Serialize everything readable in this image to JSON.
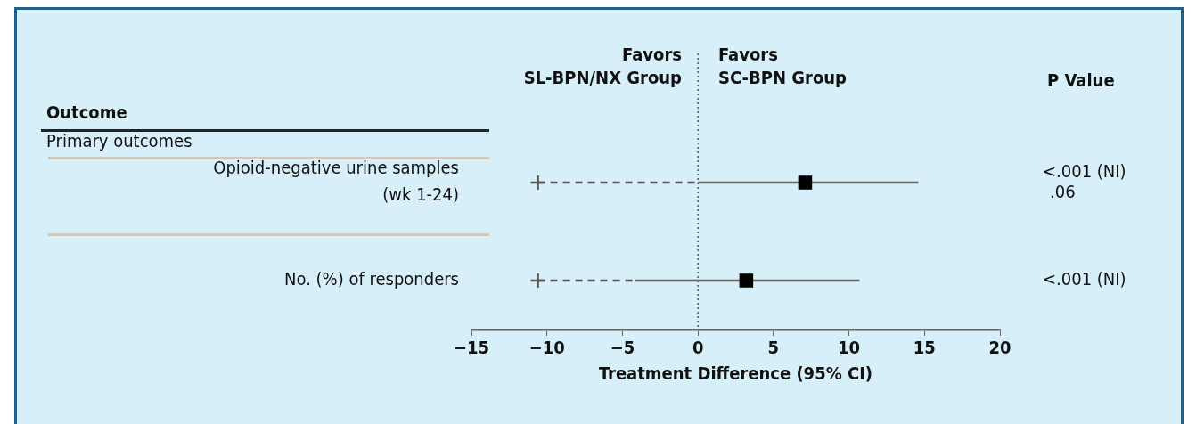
{
  "chart_data": {
    "type": "scatter",
    "orientation": "horizontal",
    "xlabel": "Treatment Difference (95% CI)",
    "categories": [
      "Opioid-negative urine samples (wk 1-24)",
      "No. (%) of responders"
    ],
    "series": [
      {
        "color": "#000000",
        "marker": "square",
        "values": [
          7.1,
          3.2
        ],
        "errors": [
          [
            0.0,
            14.6
          ],
          [
            -4.2,
            10.7
          ]
        ]
      },
      {
        "color": "#555555",
        "marker": "cross",
        "line_style": "dashed",
        "values": [
          -10.6,
          -10.6
        ],
        "errors": [
          [
            -10.6,
            0.0
          ],
          [
            -10.6,
            -4.2
          ]
        ]
      }
    ],
    "xlim": [
      -15,
      20
    ],
    "xticks": [
      -15,
      -10,
      -5,
      0,
      5,
      10,
      15,
      20
    ],
    "ref_lines": [
      {
        "axis": "x",
        "value": 0,
        "line_style": "dotted",
        "color": "#555555"
      }
    ],
    "grid": false,
    "legend": false,
    "annotations": [
      "Favors\nSL-BPN/NX Group",
      "Favors\nSC-BPN Group",
      "P Value",
      "Outcome",
      "Primary outcomes",
      "<.001 (NI)",
      ".06",
      "<.001 (NI)"
    ]
  }
}
